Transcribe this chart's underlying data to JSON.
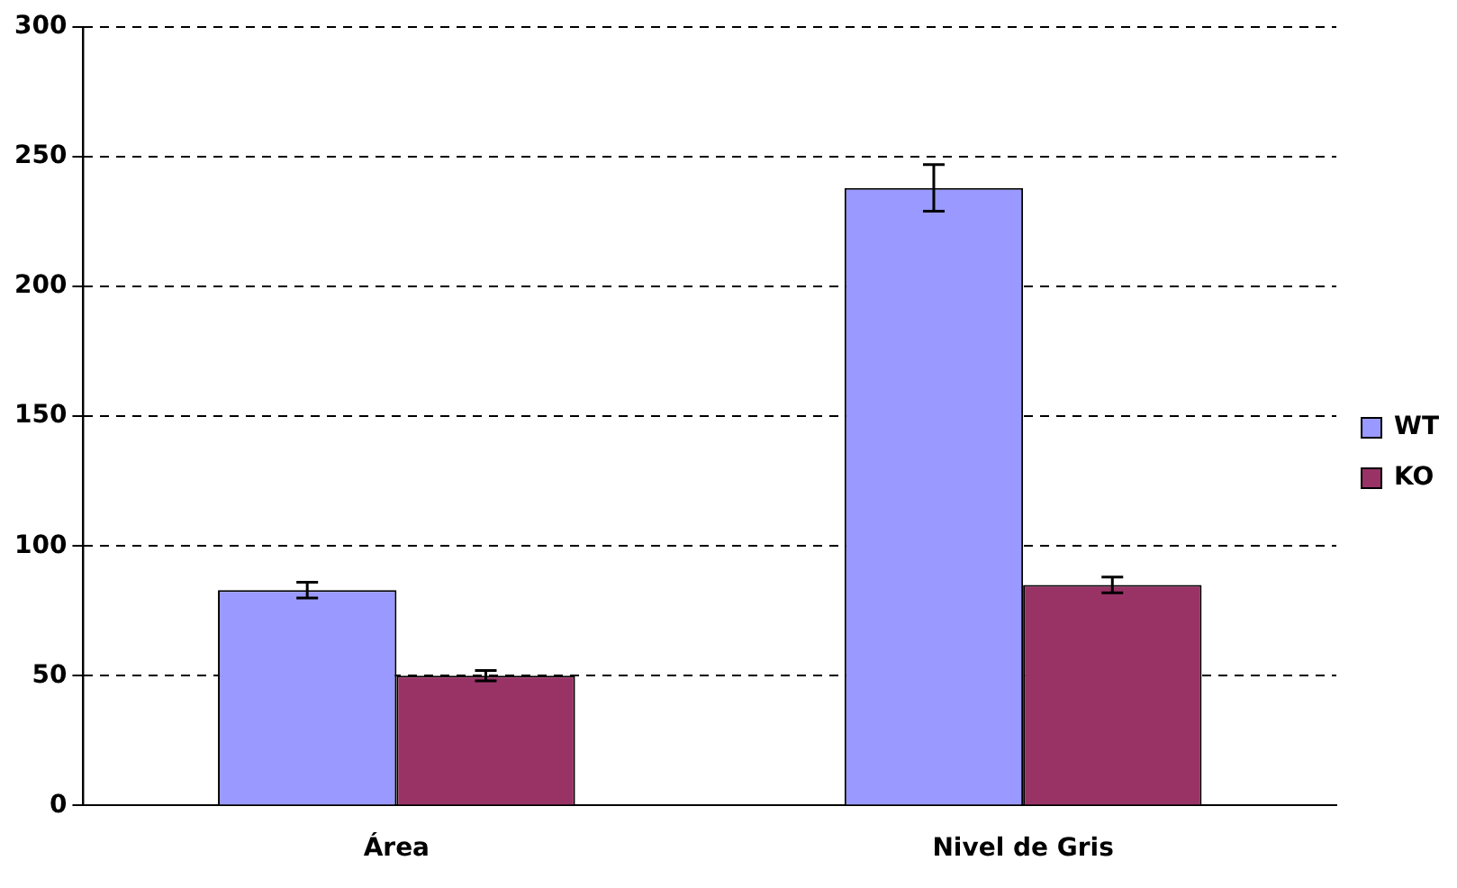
{
  "chart_data": {
    "type": "bar",
    "categories": [
      "Área",
      "Nivel de Gris"
    ],
    "series": [
      {
        "name": "WT",
        "color": "#9999ff",
        "values": [
          83,
          238
        ],
        "errors": [
          3,
          9
        ]
      },
      {
        "name": "KO",
        "color": "#993366",
        "values": [
          50,
          85
        ],
        "errors": [
          2,
          3
        ]
      }
    ],
    "ylim": [
      0,
      300
    ],
    "yticks": [
      0,
      50,
      100,
      150,
      200,
      250,
      300
    ],
    "grid": "y",
    "legend": "right"
  }
}
